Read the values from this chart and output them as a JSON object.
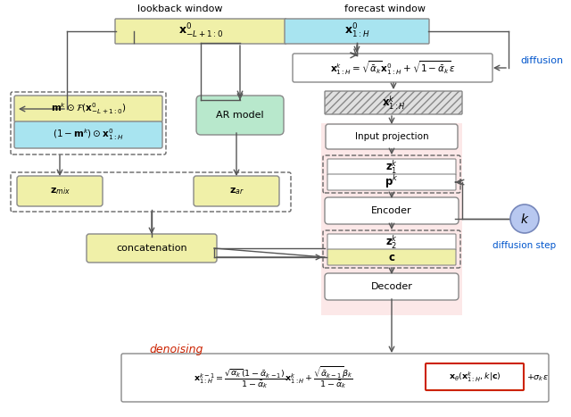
{
  "figsize": [
    6.4,
    4.67
  ],
  "dpi": 100,
  "bg_color": "#ffffff",
  "colors": {
    "yellow": "#f0f0a8",
    "cyan": "#a8e4f0",
    "green": "#b8e8cc",
    "pink_bg": "#fce8e8",
    "white": "#ffffff",
    "gray_border": "#888888",
    "dashed_border": "#666666",
    "red_border": "#cc2200",
    "blue_text": "#0055cc",
    "red_text": "#cc2200",
    "arrow": "#555555",
    "k_circle": "#b8c8f0",
    "k_circle_edge": "#7788bb"
  },
  "lookback_label": "lookback window",
  "forecast_label": "forecast window",
  "diffusion_label": "diffusion",
  "diffusion_step_label": "diffusion step",
  "denoising_label": "denoising",
  "lb_text": "$\\mathbf{x}^0_{-L+1:0}$",
  "fc_text": "$\\mathbf{x}^0_{1:H}$",
  "de_text": "$\\mathbf{x}^k_{1:H} = \\sqrt{\\bar{\\alpha}_k}\\mathbf{x}^0_{1:H} + \\sqrt{1-\\bar{\\alpha}_k}\\epsilon$",
  "ni_text": "$\\mathbf{x}^k_{1:H}$",
  "ip_text": "Input projection",
  "z1_text": "$\\mathbf{z}^k_1$",
  "pk_text": "$\\mathbf{p}^k$",
  "en_text": "Encoder",
  "z2_text": "$\\mathbf{z}^k_2$",
  "c_text": "$\\mathbf{c}$",
  "dc_text": "Decoder",
  "mk_text": "$\\mathbf{m}^k \\odot \\mathcal{F}(\\mathbf{x}^0_{-L+1:0})$",
  "im_text": "$(1-\\mathbf{m}^k) \\odot \\mathbf{x}^0_{1:H}$",
  "ar_text": "AR model",
  "zmix_text": "$\\mathbf{z}_{mix}$",
  "zar_text": "$\\mathbf{z}_{ar}$",
  "cat_text": "concatenation",
  "k_text": "$k$",
  "df_lhs": "$\\mathbf{x}^{k-1}_{1:H} = \\dfrac{\\sqrt{\\alpha_k}(1-\\bar{\\alpha}_{k-1})}{1-\\bar{\\alpha}_k}\\mathbf{x}^k_{1:H} + \\dfrac{\\sqrt{\\bar{\\alpha}_{k-1}}\\beta_k}{1-\\bar{\\alpha}_k}$",
  "df_theta": "$\\mathbf{x}_\\theta(\\mathbf{x}^k_{1:H}, k|\\mathbf{c})$",
  "df_rhs": "$+ \\sigma_k\\epsilon$"
}
